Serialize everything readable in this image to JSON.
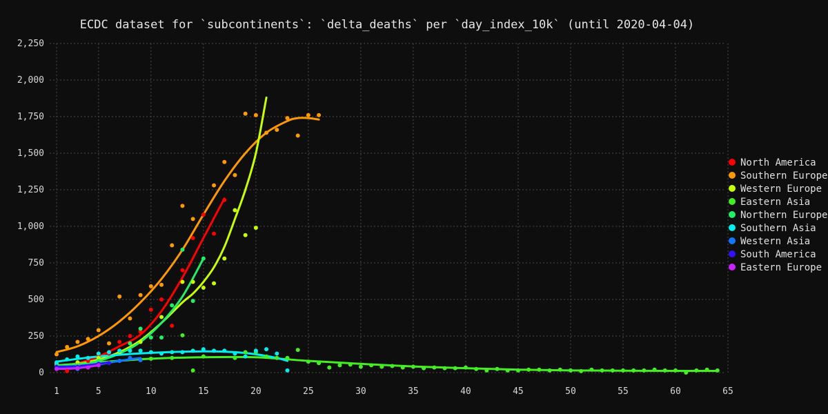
{
  "chart_data": {
    "type": "scatter",
    "title": "ECDC dataset for `subcontinents`: `delta_deaths` per `day_index_10k` (until 2020-04-04)",
    "xlabel": "",
    "ylabel": "",
    "xlim": [
      1,
      65
    ],
    "ylim": [
      0,
      2250
    ],
    "x_ticks": [
      1,
      5,
      10,
      15,
      20,
      25,
      30,
      35,
      40,
      45,
      50,
      55,
      60,
      65
    ],
    "x_tick_labels": [
      "1",
      "5",
      "10",
      "15",
      "20",
      "25",
      "30",
      "35",
      "40",
      "45",
      "50",
      "55",
      "60",
      "65"
    ],
    "y_ticks": [
      0,
      250,
      500,
      750,
      1000,
      1250,
      1500,
      1750,
      2000,
      2250
    ],
    "y_tick_labels": [
      "0",
      "250",
      "500",
      "750",
      "1,000",
      "1,250",
      "1,500",
      "1,750",
      "2,000",
      "2,250"
    ],
    "grid": true,
    "legend_position": "right",
    "series": [
      {
        "name": "North America",
        "color": "#ff0000",
        "points": [
          [
            1,
            30
          ],
          [
            2,
            10
          ],
          [
            3,
            60
          ],
          [
            4,
            80
          ],
          [
            5,
            120
          ],
          [
            6,
            130
          ],
          [
            7,
            210
          ],
          [
            8,
            250
          ],
          [
            9,
            280
          ],
          [
            10,
            430
          ],
          [
            11,
            500
          ],
          [
            12,
            320
          ],
          [
            13,
            700
          ],
          [
            14,
            920
          ],
          [
            15,
            1080
          ],
          [
            16,
            950
          ],
          [
            17,
            1180
          ]
        ],
        "trend": [
          [
            1,
            40
          ],
          [
            3,
            65
          ],
          [
            5,
            110
          ],
          [
            7,
            180
          ],
          [
            9,
            260
          ],
          [
            11,
            420
          ],
          [
            13,
            650
          ],
          [
            15,
            920
          ],
          [
            17,
            1190
          ]
        ]
      },
      {
        "name": "Southern Europe",
        "color": "#ff9900",
        "points": [
          [
            1,
            125
          ],
          [
            2,
            175
          ],
          [
            3,
            210
          ],
          [
            4,
            230
          ],
          [
            5,
            290
          ],
          [
            6,
            200
          ],
          [
            7,
            520
          ],
          [
            8,
            370
          ],
          [
            9,
            530
          ],
          [
            10,
            590
          ],
          [
            11,
            600
          ],
          [
            12,
            870
          ],
          [
            13,
            1140
          ],
          [
            14,
            1050
          ],
          [
            16,
            1280
          ],
          [
            17,
            1440
          ],
          [
            18,
            1350
          ],
          [
            19,
            1770
          ],
          [
            20,
            1760
          ],
          [
            21,
            1640
          ],
          [
            22,
            1660
          ],
          [
            23,
            1740
          ],
          [
            24,
            1620
          ],
          [
            25,
            1760
          ],
          [
            26,
            1760
          ]
        ],
        "trend": [
          [
            1,
            140
          ],
          [
            3,
            180
          ],
          [
            5,
            250
          ],
          [
            7,
            350
          ],
          [
            9,
            480
          ],
          [
            11,
            640
          ],
          [
            13,
            840
          ],
          [
            15,
            1080
          ],
          [
            17,
            1310
          ],
          [
            19,
            1500
          ],
          [
            21,
            1640
          ],
          [
            23,
            1720
          ],
          [
            24,
            1740
          ],
          [
            25,
            1740
          ],
          [
            26,
            1730
          ]
        ]
      },
      {
        "name": "Western Europe",
        "color": "#c8ff00",
        "points": [
          [
            1,
            60
          ],
          [
            3,
            70
          ],
          [
            5,
            100
          ],
          [
            7,
            140
          ],
          [
            9,
            210
          ],
          [
            11,
            380
          ],
          [
            13,
            620
          ],
          [
            14,
            620
          ],
          [
            15,
            580
          ],
          [
            16,
            610
          ],
          [
            17,
            780
          ],
          [
            18,
            1110
          ],
          [
            19,
            940
          ],
          [
            20,
            990
          ]
        ],
        "trend": [
          [
            1,
            50
          ],
          [
            3,
            60
          ],
          [
            5,
            90
          ],
          [
            7,
            140
          ],
          [
            9,
            220
          ],
          [
            11,
            340
          ],
          [
            13,
            480
          ],
          [
            14,
            540
          ],
          [
            15,
            620
          ],
          [
            16,
            720
          ],
          [
            17,
            860
          ],
          [
            18,
            1050
          ],
          [
            19,
            1250
          ],
          [
            20,
            1500
          ],
          [
            21,
            1880
          ]
        ]
      },
      {
        "name": "Eastern Asia",
        "color": "#44ee22",
        "points": [
          [
            1,
            40
          ],
          [
            5,
            80
          ],
          [
            10,
            95
          ],
          [
            12,
            100
          ],
          [
            13,
            255
          ],
          [
            14,
            15
          ],
          [
            15,
            110
          ],
          [
            18,
            100
          ],
          [
            19,
            140
          ],
          [
            20,
            140
          ],
          [
            21,
            110
          ],
          [
            22,
            100
          ],
          [
            23,
            100
          ],
          [
            24,
            155
          ],
          [
            25,
            75
          ],
          [
            26,
            65
          ],
          [
            27,
            35
          ],
          [
            28,
            50
          ],
          [
            29,
            55
          ],
          [
            30,
            40
          ],
          [
            31,
            50
          ],
          [
            32,
            40
          ],
          [
            33,
            45
          ],
          [
            34,
            35
          ],
          [
            35,
            40
          ],
          [
            36,
            30
          ],
          [
            37,
            35
          ],
          [
            38,
            30
          ],
          [
            39,
            30
          ],
          [
            40,
            35
          ],
          [
            41,
            25
          ],
          [
            42,
            15
          ],
          [
            43,
            25
          ],
          [
            44,
            15
          ],
          [
            45,
            15
          ],
          [
            46,
            20
          ],
          [
            47,
            20
          ],
          [
            48,
            15
          ],
          [
            49,
            20
          ],
          [
            50,
            15
          ],
          [
            51,
            10
          ],
          [
            52,
            20
          ],
          [
            53,
            15
          ],
          [
            54,
            15
          ],
          [
            55,
            15
          ],
          [
            56,
            15
          ],
          [
            57,
            15
          ],
          [
            58,
            20
          ],
          [
            59,
            15
          ],
          [
            60,
            15
          ],
          [
            61,
            0
          ],
          [
            62,
            15
          ],
          [
            63,
            20
          ],
          [
            64,
            15
          ]
        ],
        "trend": [
          [
            1,
            50
          ],
          [
            5,
            70
          ],
          [
            10,
            95
          ],
          [
            15,
            105
          ],
          [
            20,
            105
          ],
          [
            25,
            80
          ],
          [
            30,
            60
          ],
          [
            35,
            42
          ],
          [
            40,
            30
          ],
          [
            45,
            20
          ],
          [
            50,
            15
          ],
          [
            55,
            13
          ],
          [
            60,
            12
          ],
          [
            64,
            12
          ]
        ]
      },
      {
        "name": "Northern Europe",
        "color": "#22ee66",
        "points": [
          [
            1,
            50
          ],
          [
            3,
            50
          ],
          [
            5,
            80
          ],
          [
            7,
            150
          ],
          [
            8,
            200
          ],
          [
            9,
            300
          ],
          [
            10,
            240
          ],
          [
            11,
            240
          ],
          [
            12,
            460
          ],
          [
            13,
            840
          ],
          [
            14,
            490
          ],
          [
            15,
            780
          ]
        ],
        "trend": [
          [
            1,
            45
          ],
          [
            3,
            55
          ],
          [
            5,
            80
          ],
          [
            7,
            130
          ],
          [
            9,
            210
          ],
          [
            11,
            340
          ],
          [
            13,
            520
          ],
          [
            15,
            780
          ]
        ]
      },
      {
        "name": "Southern Asia",
        "color": "#00eeee",
        "points": [
          [
            1,
            70
          ],
          [
            2,
            90
          ],
          [
            3,
            110
          ],
          [
            4,
            100
          ],
          [
            5,
            130
          ],
          [
            6,
            140
          ],
          [
            7,
            150
          ],
          [
            8,
            150
          ],
          [
            9,
            150
          ],
          [
            10,
            140
          ],
          [
            11,
            130
          ],
          [
            12,
            140
          ],
          [
            13,
            140
          ],
          [
            14,
            150
          ],
          [
            15,
            160
          ],
          [
            16,
            150
          ],
          [
            17,
            150
          ],
          [
            18,
            130
          ],
          [
            19,
            110
          ],
          [
            20,
            150
          ],
          [
            21,
            160
          ],
          [
            22,
            130
          ],
          [
            23,
            15
          ]
        ],
        "trend": [
          [
            1,
            75
          ],
          [
            5,
            110
          ],
          [
            10,
            135
          ],
          [
            15,
            145
          ],
          [
            18,
            140
          ],
          [
            20,
            125
          ],
          [
            22,
            100
          ],
          [
            23,
            80
          ]
        ]
      },
      {
        "name": "Western Asia",
        "color": "#1177ff",
        "points": [
          [
            1,
            30
          ],
          [
            3,
            25
          ],
          [
            5,
            50
          ],
          [
            7,
            80
          ],
          [
            8,
            100
          ],
          [
            9,
            85
          ]
        ],
        "trend": [
          [
            1,
            30
          ],
          [
            3,
            35
          ],
          [
            5,
            55
          ],
          [
            7,
            80
          ],
          [
            9,
            100
          ]
        ]
      },
      {
        "name": "South America",
        "color": "#3311ff",
        "points": [
          [
            1,
            40
          ],
          [
            3,
            40
          ],
          [
            5,
            60
          ],
          [
            6,
            65
          ]
        ],
        "trend": [
          [
            1,
            40
          ],
          [
            3,
            45
          ],
          [
            5,
            60
          ],
          [
            6,
            70
          ]
        ]
      },
      {
        "name": "Eastern Europe",
        "color": "#cc22ff",
        "points": [
          [
            1,
            25
          ],
          [
            3,
            30
          ],
          [
            4,
            35
          ],
          [
            5,
            50
          ]
        ],
        "trend": [
          [
            1,
            25
          ],
          [
            3,
            30
          ],
          [
            5,
            50
          ]
        ]
      }
    ]
  }
}
